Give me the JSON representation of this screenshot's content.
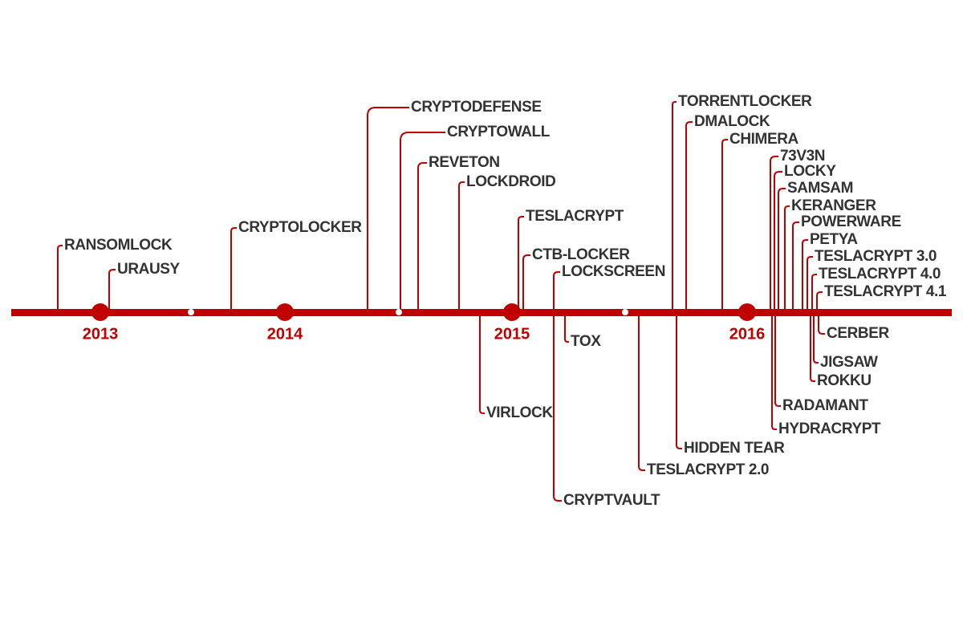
{
  "years": [
    "2013",
    "2014",
    "2015",
    "2016"
  ],
  "events": [
    "RANSOMLOCK",
    "URAUSY",
    "CRYPTOLOCKER",
    "CRYPTODEFENSE",
    "CRYPTOWALL",
    "REVETON",
    "LOCKDROID",
    "TESLACRYPT",
    "CTB-LOCKER",
    "LOCKSCREEN",
    "CRYPTVAULT",
    "TOX",
    "VIRLOCK",
    "TESLACRYPT 2.0",
    "HIDDEN TEAR",
    "TORRENTLOCKER",
    "DMALOCK",
    "CHIMERA",
    "73V3N",
    "LOCKY",
    "SAMSAM",
    "KERANGER",
    "POWERWARE",
    "PETYA",
    "TESLACRYPT 3.0",
    "TESLACRYPT 4.0",
    "TESLACRYPT 4.1",
    "CERBER",
    "JIGSAW",
    "ROKKU",
    "RADAMANT",
    "HYDRACRYPT"
  ]
}
